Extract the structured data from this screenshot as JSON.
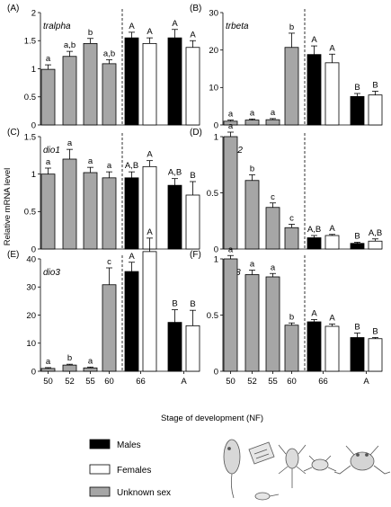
{
  "figure": {
    "ylabel": "Relative mRNA level",
    "xlabel": "Stage of development (NF)",
    "x_tick_labels": [
      "50",
      "52",
      "55",
      "60",
      "66",
      "A"
    ],
    "legend": [
      {
        "label": "Males",
        "color": "#000000"
      },
      {
        "label": "Females",
        "color": "#ffffff"
      },
      {
        "label": "Unknown sex",
        "color": "#a6a6a6"
      }
    ],
    "illustration": "xenopus-development-stages"
  },
  "chart_data": [
    {
      "type": "bar",
      "panel": "(A)",
      "gene": "tralpha",
      "categories": [
        "50",
        "52",
        "55",
        "60",
        "66",
        "A"
      ],
      "ylim": [
        0,
        2.0
      ],
      "yticks": [
        0,
        0.5,
        1.0,
        1.5,
        2.0
      ],
      "series": [
        {
          "name": "Unknown sex",
          "values": [
            0.99,
            1.22,
            1.45,
            1.09,
            null,
            null
          ],
          "errors": [
            0.08,
            0.09,
            0.09,
            0.07,
            null,
            null
          ],
          "labels": [
            "a",
            "a,b",
            "b",
            "a,b",
            null,
            null
          ]
        },
        {
          "name": "Males",
          "values": [
            null,
            null,
            null,
            null,
            1.55,
            1.55
          ],
          "errors": [
            null,
            null,
            null,
            null,
            0.1,
            0.15
          ],
          "labels": [
            null,
            null,
            null,
            null,
            "A",
            "A"
          ]
        },
        {
          "name": "Females",
          "values": [
            null,
            null,
            null,
            null,
            1.45,
            1.38
          ],
          "errors": [
            null,
            null,
            null,
            null,
            0.1,
            0.12
          ],
          "labels": [
            null,
            null,
            null,
            null,
            "A",
            "A"
          ]
        }
      ]
    },
    {
      "type": "bar",
      "panel": "(B)",
      "gene": "trbeta",
      "categories": [
        "50",
        "52",
        "55",
        "60",
        "66",
        "A"
      ],
      "ylim": [
        0,
        30
      ],
      "yticks": [
        0,
        10,
        20,
        30
      ],
      "series": [
        {
          "name": "Unknown sex",
          "values": [
            1.0,
            1.3,
            1.4,
            20.7,
            null,
            null
          ],
          "errors": [
            0.3,
            0.3,
            0.3,
            3.8,
            null,
            null
          ],
          "labels": [
            "a",
            "a",
            "a",
            "b",
            null,
            null
          ]
        },
        {
          "name": "Males",
          "values": [
            null,
            null,
            null,
            null,
            18.8,
            7.6
          ],
          "errors": [
            null,
            null,
            null,
            null,
            2.3,
            0.8
          ],
          "labels": [
            null,
            null,
            null,
            null,
            "A",
            "B"
          ]
        },
        {
          "name": "Females",
          "values": [
            null,
            null,
            null,
            null,
            16.6,
            8.0
          ],
          "errors": [
            null,
            null,
            null,
            null,
            2.3,
            1.0
          ],
          "labels": [
            null,
            null,
            null,
            null,
            "A",
            "B"
          ]
        }
      ]
    },
    {
      "type": "bar",
      "panel": "(C)",
      "gene": "dio1",
      "categories": [
        "50",
        "52",
        "55",
        "60",
        "66",
        "A"
      ],
      "ylim": [
        0,
        1.5
      ],
      "yticks": [
        0,
        0.5,
        1.0,
        1.5
      ],
      "series": [
        {
          "name": "Unknown sex",
          "values": [
            1.0,
            1.2,
            1.02,
            0.95,
            null,
            null
          ],
          "errors": [
            0.08,
            0.13,
            0.07,
            0.08,
            null,
            null
          ],
          "labels": [
            "a",
            "a",
            "a",
            "a",
            null,
            null
          ]
        },
        {
          "name": "Males",
          "values": [
            null,
            null,
            null,
            null,
            0.95,
            0.85
          ],
          "errors": [
            null,
            null,
            null,
            null,
            0.08,
            0.09
          ],
          "labels": [
            null,
            null,
            null,
            null,
            "A,B",
            "A,B"
          ]
        },
        {
          "name": "Females",
          "values": [
            null,
            null,
            null,
            null,
            1.1,
            0.72
          ],
          "errors": [
            null,
            null,
            null,
            null,
            0.08,
            0.18
          ],
          "labels": [
            null,
            null,
            null,
            null,
            "A",
            "B"
          ]
        }
      ]
    },
    {
      "type": "bar",
      "panel": "(D)",
      "gene": "dio2",
      "categories": [
        "50",
        "52",
        "55",
        "60",
        "66",
        "A"
      ],
      "ylim": [
        0,
        1.0
      ],
      "yticks": [
        0,
        0.5,
        1.0
      ],
      "series": [
        {
          "name": "Unknown sex",
          "values": [
            1.0,
            0.61,
            0.37,
            0.19,
            null,
            null
          ],
          "errors": [
            0.04,
            0.05,
            0.04,
            0.03,
            null,
            null
          ],
          "labels": [
            "a",
            "b",
            "c",
            "c",
            null,
            null
          ]
        },
        {
          "name": "Males",
          "values": [
            null,
            null,
            null,
            null,
            0.1,
            0.05
          ],
          "errors": [
            null,
            null,
            null,
            null,
            0.02,
            0.01
          ],
          "labels": [
            null,
            null,
            null,
            null,
            "A,B",
            "B"
          ]
        },
        {
          "name": "Females",
          "values": [
            null,
            null,
            null,
            null,
            0.12,
            0.07
          ],
          "errors": [
            null,
            null,
            null,
            null,
            0.01,
            0.02
          ],
          "labels": [
            null,
            null,
            null,
            null,
            "A",
            "A,B"
          ]
        }
      ]
    },
    {
      "type": "bar",
      "panel": "(E)",
      "gene": "dio3",
      "categories": [
        "50",
        "52",
        "55",
        "60",
        "66",
        "A"
      ],
      "ylim": [
        0,
        40
      ],
      "yticks": [
        0,
        10,
        20,
        30,
        40
      ],
      "series": [
        {
          "name": "Unknown sex",
          "values": [
            1.0,
            2.2,
            1.2,
            30.8,
            null,
            null
          ],
          "errors": [
            0.3,
            0.3,
            0.3,
            6.0,
            null,
            null
          ],
          "labels": [
            "a",
            "b",
            "a",
            "c",
            null,
            null
          ]
        },
        {
          "name": "Males",
          "values": [
            null,
            null,
            null,
            null,
            35.5,
            17.4
          ],
          "errors": [
            null,
            null,
            null,
            null,
            3.3,
            4.5
          ],
          "labels": [
            null,
            null,
            null,
            null,
            "A",
            "B"
          ]
        },
        {
          "name": "Females",
          "values": [
            null,
            null,
            null,
            null,
            42.6,
            16.2
          ],
          "errors": [
            null,
            null,
            null,
            null,
            4.8,
            5.5
          ],
          "labels": [
            null,
            null,
            null,
            null,
            "A",
            "B"
          ]
        }
      ]
    },
    {
      "type": "bar",
      "panel": "(F)",
      "gene": "rpl8",
      "categories": [
        "50",
        "52",
        "55",
        "60",
        "66",
        "A"
      ],
      "ylim": [
        0,
        1.0
      ],
      "yticks": [
        0,
        0.5,
        1.0
      ],
      "series": [
        {
          "name": "Unknown sex",
          "values": [
            1.0,
            0.86,
            0.84,
            0.41,
            null,
            null
          ],
          "errors": [
            0.03,
            0.04,
            0.03,
            0.02,
            null,
            null
          ],
          "labels": [
            "a",
            "a",
            "a",
            "b",
            null,
            null
          ]
        },
        {
          "name": "Males",
          "values": [
            null,
            null,
            null,
            null,
            0.44,
            0.3
          ],
          "errors": [
            null,
            null,
            null,
            null,
            0.02,
            0.04
          ],
          "labels": [
            null,
            null,
            null,
            null,
            "A",
            "B"
          ]
        },
        {
          "name": "Females",
          "values": [
            null,
            null,
            null,
            null,
            0.4,
            0.29
          ],
          "errors": [
            null,
            null,
            null,
            null,
            0.02,
            0.01
          ],
          "labels": [
            null,
            null,
            null,
            null,
            "A",
            "B"
          ]
        }
      ]
    }
  ]
}
